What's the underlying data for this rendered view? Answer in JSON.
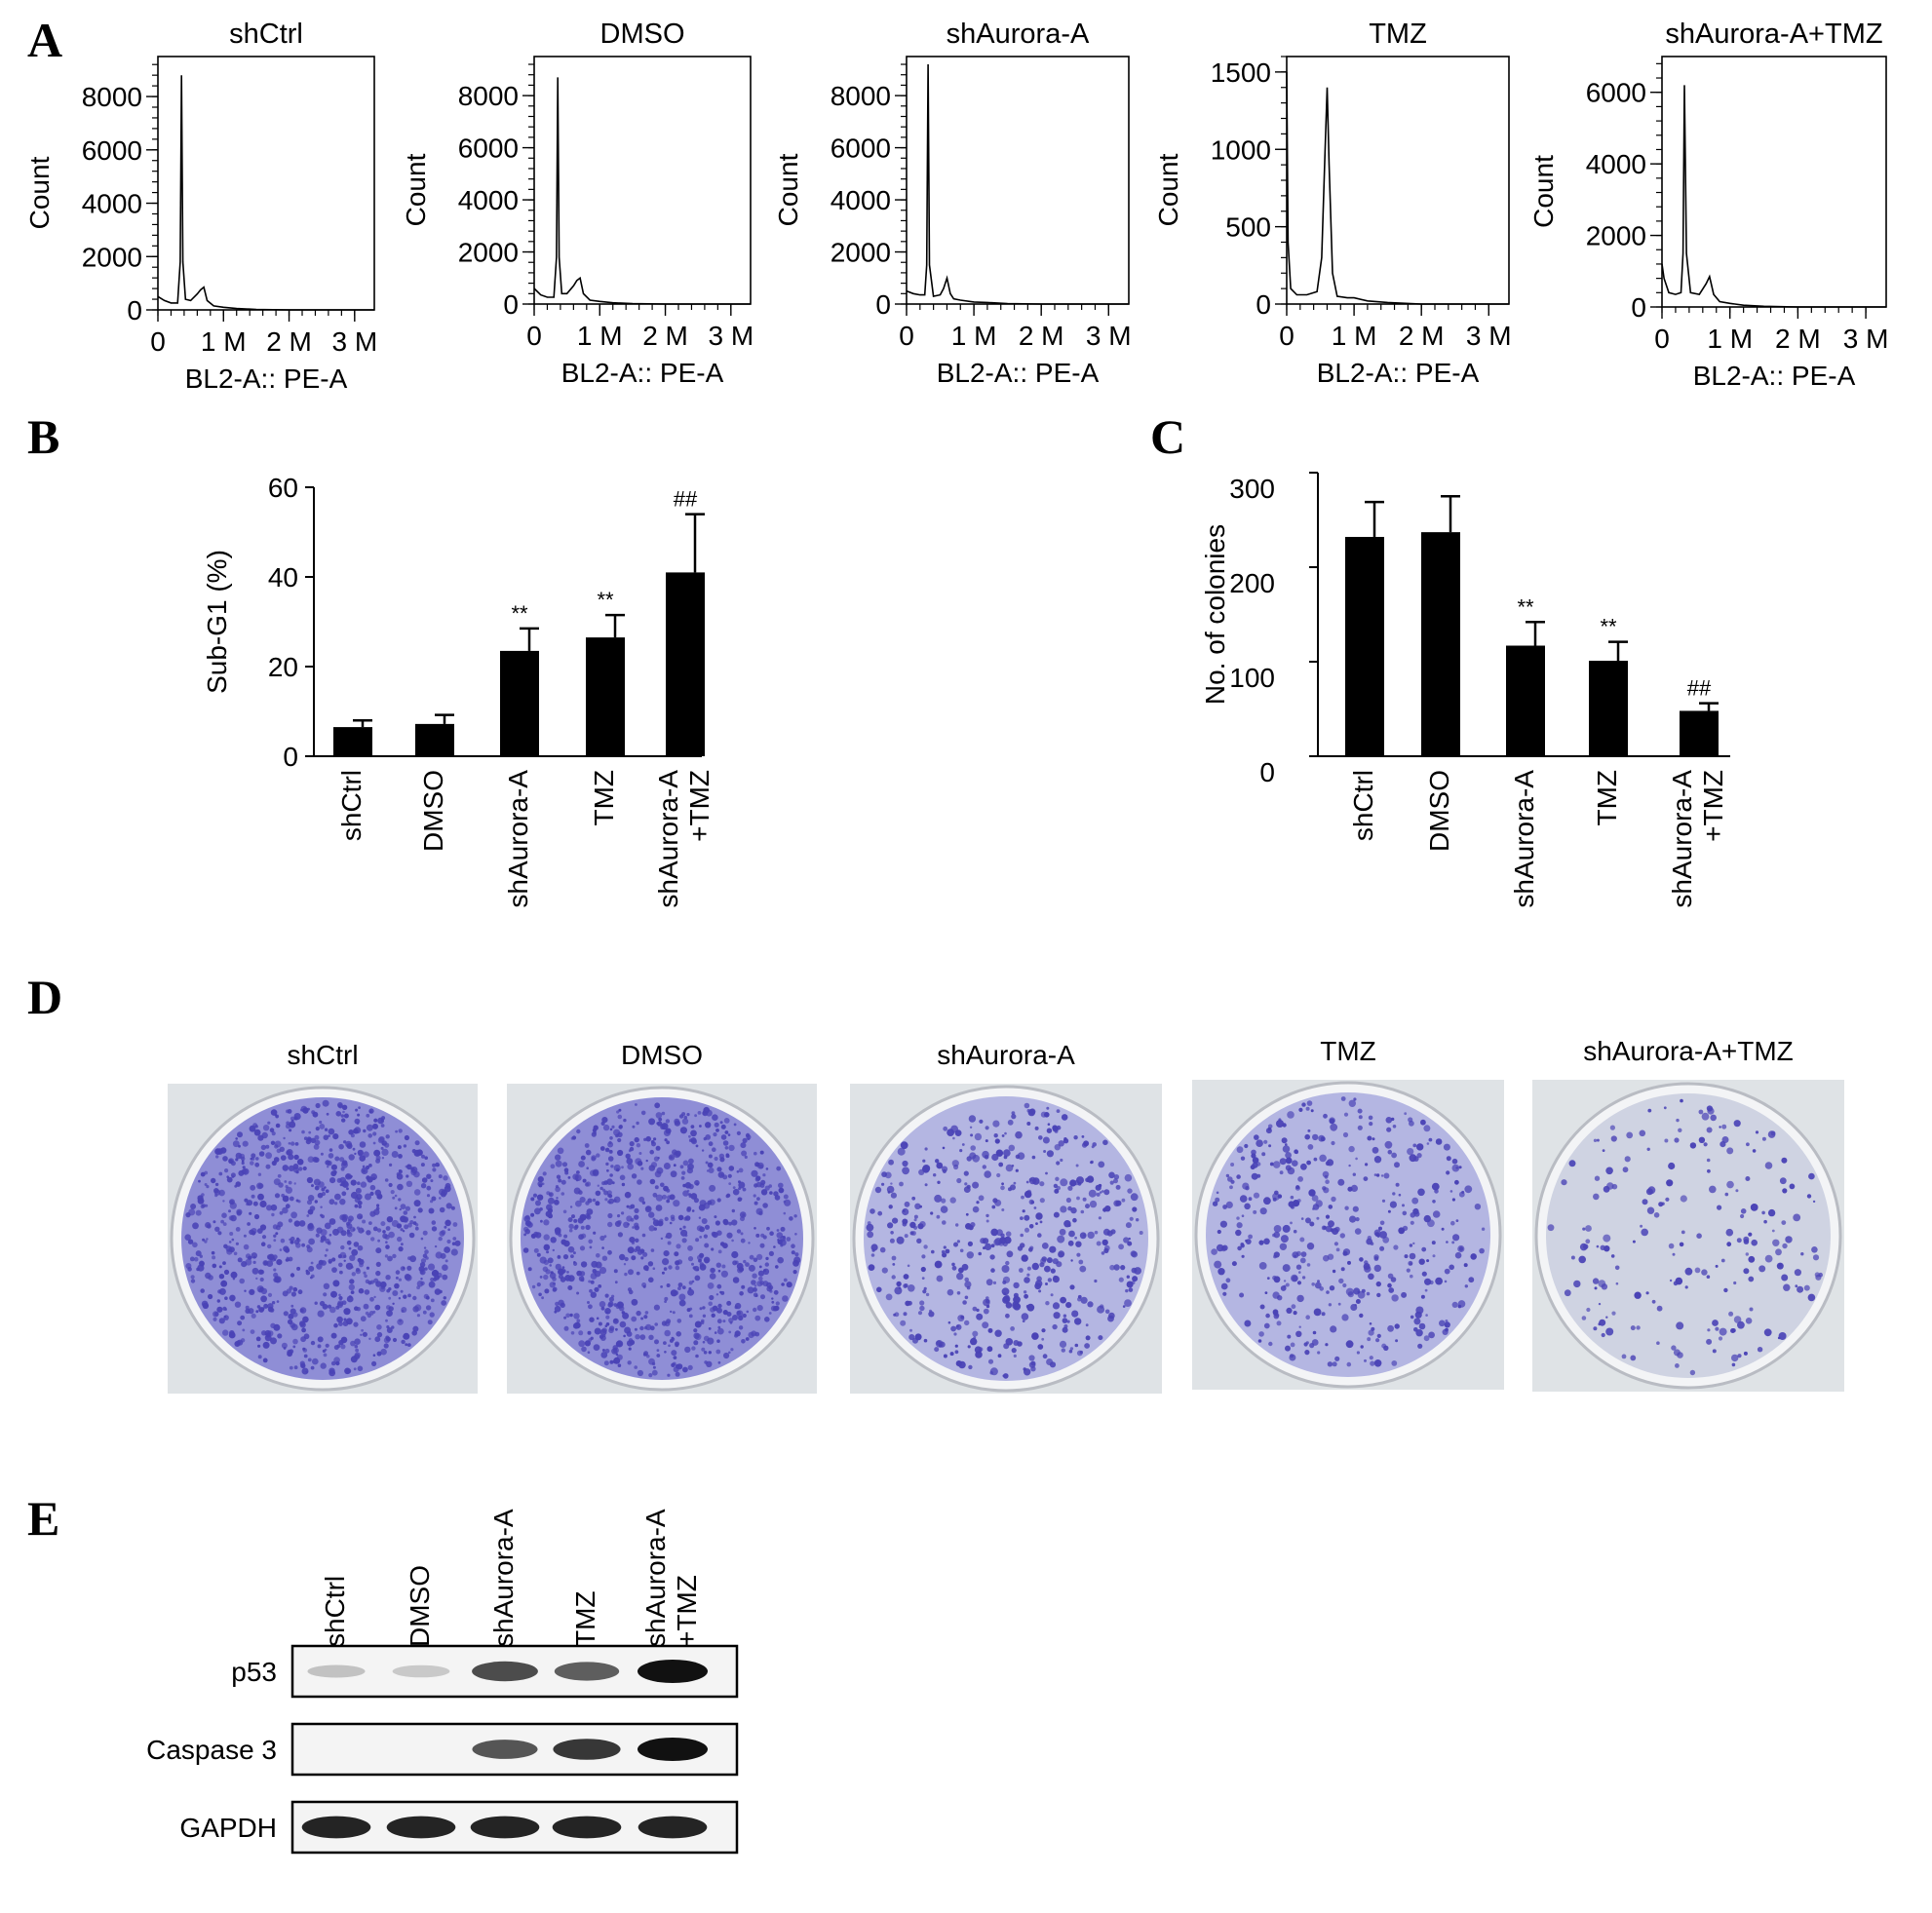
{
  "panel_labels": [
    "A",
    "B",
    "C",
    "D",
    "E"
  ],
  "chart_data": [
    {
      "type": "line",
      "panel": "A",
      "title": "shCtrl",
      "xlabel": "BL2-A:: PE-A",
      "ylabel": "Count",
      "xlim": [
        0,
        3300000
      ],
      "ylim": [
        0,
        9500
      ],
      "xticks": [
        "0",
        "1 M",
        "2 M",
        "3 M"
      ],
      "xtick_values": [
        0,
        1000000,
        2000000,
        3000000
      ],
      "yticks": [
        "0",
        "2000",
        "4000",
        "6000",
        "8000"
      ],
      "ytick_values": [
        0,
        2000,
        4000,
        6000,
        8000
      ],
      "x": [
        0,
        100000,
        200000,
        300000,
        340000,
        360000,
        380000,
        420000,
        500000,
        600000,
        650000,
        700000,
        750000,
        850000,
        1000000,
        1200000,
        1500000,
        2000000,
        3300000
      ],
      "y": [
        500,
        350,
        260,
        260,
        1800,
        8800,
        1800,
        400,
        350,
        600,
        750,
        850,
        350,
        150,
        100,
        50,
        20,
        0,
        0
      ]
    },
    {
      "type": "line",
      "panel": "A",
      "title": "DMSO",
      "xlabel": "BL2-A:: PE-A",
      "ylabel": "Count",
      "xlim": [
        0,
        3300000
      ],
      "ylim": [
        0,
        9500
      ],
      "xticks": [
        "0",
        "1 M",
        "2 M",
        "3 M"
      ],
      "xtick_values": [
        0,
        1000000,
        2000000,
        3000000
      ],
      "yticks": [
        "0",
        "2000",
        "4000",
        "6000",
        "8000"
      ],
      "ytick_values": [
        0,
        2000,
        4000,
        6000,
        8000
      ],
      "x": [
        0,
        100000,
        200000,
        300000,
        340000,
        360000,
        380000,
        420000,
        500000,
        600000,
        650000,
        700000,
        750000,
        850000,
        1000000,
        1200000,
        1500000,
        2000000,
        3300000
      ],
      "y": [
        600,
        350,
        260,
        260,
        1800,
        8700,
        1800,
        400,
        400,
        700,
        900,
        1000,
        400,
        150,
        100,
        50,
        20,
        0,
        0
      ]
    },
    {
      "type": "line",
      "panel": "A",
      "title": "shAurora-A",
      "xlabel": "BL2-A:: PE-A",
      "ylabel": "Count",
      "xlim": [
        0,
        3300000
      ],
      "ylim": [
        0,
        9500
      ],
      "xticks": [
        "0",
        "1 M",
        "2 M",
        "3 M"
      ],
      "xtick_values": [
        0,
        1000000,
        2000000,
        3000000
      ],
      "yticks": [
        "0",
        "2000",
        "4000",
        "6000",
        "8000"
      ],
      "ytick_values": [
        0,
        2000,
        4000,
        6000,
        8000
      ],
      "x": [
        0,
        100000,
        200000,
        270000,
        300000,
        320000,
        340000,
        400000,
        500000,
        550000,
        600000,
        650000,
        700000,
        800000,
        1000000,
        1200000,
        1500000,
        2000000,
        3300000
      ],
      "y": [
        500,
        400,
        350,
        350,
        1500,
        9200,
        1500,
        300,
        350,
        600,
        1000,
        400,
        200,
        150,
        80,
        60,
        20,
        0,
        0
      ]
    },
    {
      "type": "line",
      "panel": "A",
      "title": "TMZ",
      "xlabel": "BL2-A:: PE-A",
      "ylabel": "Count",
      "xlim": [
        0,
        3300000
      ],
      "ylim": [
        0,
        1600
      ],
      "xticks": [
        "0",
        "1 M",
        "2 M",
        "3 M"
      ],
      "xtick_values": [
        0,
        1000000,
        2000000,
        3000000
      ],
      "yticks": [
        "0",
        "500",
        "1000",
        "1500"
      ],
      "ytick_values": [
        0,
        500,
        1000,
        1500
      ],
      "x": [
        0,
        20000,
        60000,
        150000,
        300000,
        450000,
        520000,
        570000,
        600000,
        630000,
        680000,
        750000,
        900000,
        1000000,
        1200000,
        1500000,
        2000000,
        3300000
      ],
      "y": [
        1500,
        400,
        100,
        60,
        60,
        80,
        300,
        1000,
        1400,
        900,
        200,
        50,
        40,
        40,
        20,
        10,
        0,
        0
      ]
    },
    {
      "type": "line",
      "panel": "A",
      "title": "shAurora-A+TMZ",
      "xlabel": "BL2-A:: PE-A",
      "ylabel": "Count",
      "xlim": [
        0,
        3300000
      ],
      "ylim": [
        0,
        7000
      ],
      "xticks": [
        "0",
        "1 M",
        "2 M",
        "3 M"
      ],
      "xtick_values": [
        0,
        1000000,
        2000000,
        3000000
      ],
      "yticks": [
        "0",
        "2000",
        "4000",
        "6000"
      ],
      "ytick_values": [
        0,
        2000,
        4000,
        6000
      ],
      "x": [
        0,
        30000,
        100000,
        200000,
        280000,
        310000,
        330000,
        360000,
        420000,
        550000,
        650000,
        700000,
        760000,
        850000,
        1000000,
        1200000,
        1500000,
        2000000,
        3300000
      ],
      "y": [
        1200,
        800,
        400,
        350,
        400,
        1500,
        6200,
        1500,
        400,
        350,
        650,
        850,
        350,
        150,
        100,
        50,
        20,
        0,
        0
      ]
    },
    {
      "type": "bar",
      "panel": "B",
      "categories": [
        "shCtrl",
        "DMSO",
        "shAurora-A",
        "TMZ",
        "shAurora-A\n+TMZ"
      ],
      "values": [
        6.5,
        7.2,
        23.5,
        26.5,
        41.0
      ],
      "errors": [
        1.5,
        2.0,
        5.0,
        5.0,
        13.0
      ],
      "annotations": [
        "",
        "",
        "**",
        "**",
        "##"
      ],
      "xlabel": "",
      "ylabel": "Sub-G1 (%)",
      "ylim": [
        0,
        60
      ],
      "yticks": [
        "0",
        "20",
        "40",
        "60"
      ],
      "ytick_values": [
        0,
        20,
        40,
        60
      ]
    },
    {
      "type": "bar",
      "panel": "C",
      "categories": [
        "shCtrl",
        "DMSO",
        "shAurora-A",
        "TMZ",
        "shAurora-A\n+TMZ"
      ],
      "values": [
        232,
        237,
        117,
        101,
        48
      ],
      "errors": [
        37,
        38,
        25,
        20,
        8
      ],
      "annotations": [
        "",
        "",
        "**",
        "**",
        "##"
      ],
      "xlabel": "",
      "ylabel": "No. of colonies",
      "ylim": [
        0,
        300
      ],
      "yticks": [
        "0",
        "100",
        "200",
        "300"
      ],
      "ytick_values": [
        0,
        100,
        200,
        300
      ]
    }
  ],
  "panel_d": {
    "captions": [
      "shCtrl",
      "DMSO",
      "shAurora-A",
      "TMZ",
      "shAurora-A+TMZ"
    ],
    "colony_density": [
      1.0,
      0.95,
      0.55,
      0.45,
      0.18
    ],
    "stain_color": "#4a43b6"
  },
  "panel_e": {
    "lanes": [
      "shCtrl",
      "DMSO",
      "shAurora-A",
      "TMZ",
      "shAurora-A\n+TMZ"
    ],
    "rows": [
      {
        "label": "p53",
        "intensity": [
          0.08,
          0.05,
          0.7,
          0.6,
          1.0
        ]
      },
      {
        "label": "Caspase 3",
        "intensity": [
          0.0,
          0.0,
          0.65,
          0.8,
          1.0
        ]
      },
      {
        "label": "GAPDH",
        "intensity": [
          0.9,
          0.9,
          0.9,
          0.9,
          0.9
        ]
      }
    ]
  }
}
